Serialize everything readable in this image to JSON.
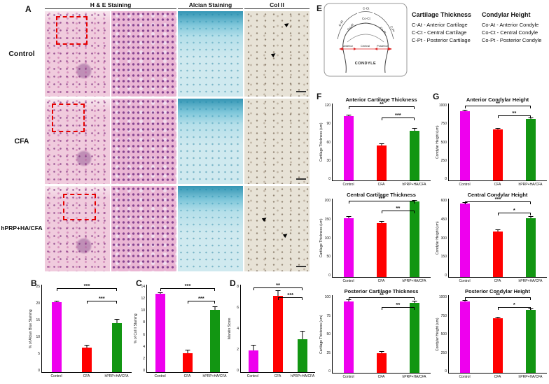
{
  "figure": {
    "panel_a": {
      "label": "A",
      "col_headers": [
        "H & E Staining",
        "Alcian Staining",
        "Col II"
      ],
      "row_labels": [
        "Control",
        "CFA",
        "hPRP+HA/CFA"
      ]
    },
    "panel_b_label": "B",
    "panel_c_label": "C",
    "panel_d_label": "D",
    "panel_e": {
      "label": "E",
      "diagram": {
        "c_at": "C-At",
        "c_ct": "C-Ct",
        "c_pt": "C-Pt",
        "co_at": "Co-At",
        "co_ct": "Co-Ct",
        "co_pt": "Co-Pt",
        "anterior": "Anterior",
        "central": "Central",
        "posterior": "Posterior",
        "condyle": "CONDYLE"
      },
      "cartilage_legend": {
        "title": "Cartilage Thickness",
        "items": [
          "C-At - Anterior Cartilage",
          "C-Ct - Central Cartilage",
          "C-Pt - Posterior Cartilage"
        ]
      },
      "condylar_legend": {
        "title": "Condylar Height",
        "items": [
          "Co-At - Anterior Condyle",
          "Co-Ct - Central Condyle",
          "Co-Pt - Posterior Condyle"
        ]
      }
    },
    "panel_f_label": "F",
    "panel_g_label": "G"
  },
  "chart_data": [
    {
      "id": "B",
      "type": "bar",
      "title": "",
      "ylabel": "% of Alcian Blue Staining",
      "categories": [
        "Control",
        "CFA",
        "hPRP+HA/CFA"
      ],
      "values": [
        20,
        7,
        14
      ],
      "errors": [
        0.5,
        0.8,
        1.2
      ],
      "ylim": [
        0,
        25
      ],
      "yticks": [
        0,
        5,
        10,
        15,
        20,
        25
      ],
      "colors": [
        "#EE00EE",
        "#FF0000",
        "#129612"
      ],
      "significance": [
        {
          "from": 0,
          "to": 2,
          "label": "***",
          "top": 4
        },
        {
          "from": 1,
          "to": 2,
          "label": "***",
          "top": 18
        }
      ]
    },
    {
      "id": "C",
      "type": "bar",
      "title": "",
      "ylabel": "% of Col II Staining",
      "categories": [
        "Control",
        "CFA",
        "hPRP+HA/CFA"
      ],
      "values": [
        12.5,
        3,
        10
      ],
      "errors": [
        0.3,
        0.6,
        0.5
      ],
      "ylim": [
        0,
        14
      ],
      "yticks": [
        0,
        2,
        4,
        6,
        8,
        10,
        12,
        14
      ],
      "colors": [
        "#EE00EE",
        "#FF0000",
        "#129612"
      ],
      "significance": [
        {
          "from": 0,
          "to": 2,
          "label": "***",
          "top": 4
        },
        {
          "from": 1,
          "to": 2,
          "label": "***",
          "top": 18
        }
      ]
    },
    {
      "id": "D",
      "type": "bar",
      "title": "",
      "ylabel": "Mankin Score",
      "categories": [
        "Control",
        "CFA",
        "hPRP+HA/CFA"
      ],
      "values": [
        2,
        7,
        3
      ],
      "errors": [
        0.5,
        0.5,
        0.8
      ],
      "ylim": [
        0,
        8
      ],
      "yticks": [
        0,
        2,
        4,
        6,
        8
      ],
      "colors": [
        "#EE00EE",
        "#FF0000",
        "#129612"
      ],
      "significance": [
        {
          "from": 0,
          "to": 2,
          "label": "**",
          "top": 3
        },
        {
          "from": 1,
          "to": 2,
          "label": "***",
          "top": 14
        }
      ]
    },
    {
      "id": "F1",
      "type": "bar",
      "title": "Anterior Cartilage Thickness",
      "ylabel": "Cartilage Thickness (um)",
      "categories": [
        "Control",
        "CFA",
        "hPRP+HA/CFA"
      ],
      "values": [
        100,
        55,
        78
      ],
      "errors": [
        3,
        3,
        4
      ],
      "ylim": [
        0,
        120
      ],
      "yticks": [
        0,
        30,
        60,
        90,
        120
      ],
      "colors": [
        "#EE00EE",
        "#FF0000",
        "#129612"
      ],
      "significance": [
        {
          "from": 0,
          "to": 2,
          "label": "**",
          "top": 4
        },
        {
          "from": 1,
          "to": 2,
          "label": "***",
          "top": 18
        }
      ]
    },
    {
      "id": "F2",
      "type": "bar",
      "title": "Central Cartilage Thickness",
      "ylabel": "Cartilage Thickness (um)",
      "categories": [
        "Control",
        "CFA",
        "hPRP+HA/CFA"
      ],
      "values": [
        150,
        138,
        192
      ],
      "errors": [
        5,
        5,
        5
      ],
      "ylim": [
        0,
        200
      ],
      "yticks": [
        0,
        50,
        100,
        150,
        200
      ],
      "colors": [
        "#EE00EE",
        "#FF0000",
        "#129612"
      ],
      "significance": [
        {
          "from": 0,
          "to": 2,
          "label": "***",
          "top": 3
        },
        {
          "from": 1,
          "to": 2,
          "label": "**",
          "top": 15
        }
      ]
    },
    {
      "id": "F3",
      "type": "bar",
      "title": "Posterior Cartilage Thickness",
      "ylabel": "Cartilage Thickness (um)",
      "categories": [
        "Control",
        "CFA",
        "hPRP+HA/CFA"
      ],
      "values": [
        92,
        25,
        90
      ],
      "errors": [
        3,
        3,
        3
      ],
      "ylim": [
        0,
        100
      ],
      "yticks": [
        0,
        25,
        50,
        75,
        100
      ],
      "colors": [
        "#EE00EE",
        "#FF0000",
        "#129612"
      ],
      "significance": [
        {
          "from": 0,
          "to": 2,
          "label": "**",
          "top": 3
        },
        {
          "from": 1,
          "to": 2,
          "label": "**",
          "top": 15
        }
      ]
    },
    {
      "id": "G1",
      "type": "bar",
      "title": "Anterior Condylar Height",
      "ylabel": "Condylar Height (um)",
      "categories": [
        "Control",
        "CFA",
        "hPRP+HA/CFA"
      ],
      "values": [
        900,
        660,
        800
      ],
      "errors": [
        20,
        20,
        20
      ],
      "ylim": [
        0,
        1000
      ],
      "yticks": [
        0,
        250,
        500,
        750,
        1000
      ],
      "colors": [
        "#EE00EE",
        "#FF0000",
        "#129612"
      ],
      "significance": [
        {
          "from": 0,
          "to": 2,
          "label": "**",
          "top": 3
        },
        {
          "from": 1,
          "to": 2,
          "label": "**",
          "top": 15
        }
      ]
    },
    {
      "id": "G2",
      "type": "bar",
      "title": "Central Condylar Height",
      "ylabel": "Condylar Height (um)",
      "categories": [
        "Control",
        "CFA",
        "hPRP+HA/CFA"
      ],
      "values": [
        560,
        350,
        450
      ],
      "errors": [
        15,
        15,
        15
      ],
      "ylim": [
        0,
        600
      ],
      "yticks": [
        0,
        150,
        300,
        450,
        600
      ],
      "colors": [
        "#EE00EE",
        "#FF0000",
        "#129612"
      ],
      "significance": [
        {
          "from": 0,
          "to": 2,
          "label": "***",
          "top": 4
        },
        {
          "from": 1,
          "to": 2,
          "label": "*",
          "top": 18
        }
      ]
    },
    {
      "id": "G3",
      "type": "bar",
      "title": "Posterior Condylar Height",
      "ylabel": "Condylar Height (um)",
      "categories": [
        "Control",
        "CFA",
        "hPRP+HA/CFA"
      ],
      "values": [
        920,
        700,
        810
      ],
      "errors": [
        15,
        15,
        15
      ],
      "ylim": [
        0,
        1000
      ],
      "yticks": [
        0,
        250,
        500,
        750,
        1000
      ],
      "colors": [
        "#EE00EE",
        "#FF0000",
        "#129612"
      ],
      "significance": [
        {
          "from": 0,
          "to": 2,
          "label": "**",
          "top": 3
        },
        {
          "from": 1,
          "to": 2,
          "label": "*",
          "top": 15
        }
      ]
    }
  ]
}
